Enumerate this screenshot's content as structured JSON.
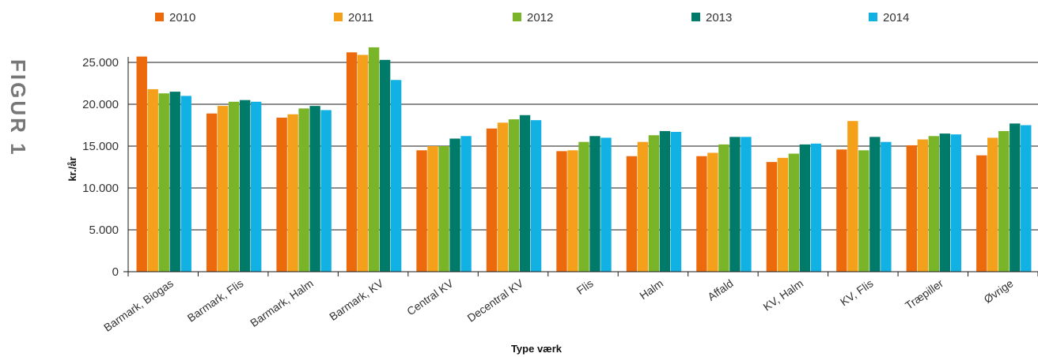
{
  "figure": {
    "label": "FIGUR 1"
  },
  "chart_data": {
    "type": "bar",
    "xlabel": "Type værk",
    "ylabel": "kr./år",
    "ylim": [
      0,
      28000
    ],
    "yticks": [
      0,
      5000,
      10000,
      15000,
      20000,
      25000
    ],
    "ytick_labels": [
      "0",
      "5.000",
      "10.000",
      "15.000",
      "20.000",
      "25.000"
    ],
    "grid": "horizontal",
    "legend_position": "top",
    "categories": [
      "Barmark, Biogas",
      "Barmark, Flis",
      "Barmark, Halm",
      "Barmark, KV",
      "Central KV",
      "Decentral KV",
      "Flis",
      "Halm",
      "Affald",
      "KV, Halm",
      "KV, Flis",
      "Træpiller",
      "Øvrige"
    ],
    "series": [
      {
        "name": "2010",
        "color": "#ec6a0c",
        "values": [
          25700,
          18900,
          18400,
          26200,
          14500,
          17100,
          14400,
          13800,
          13800,
          13100,
          14600,
          15100,
          13900
        ]
      },
      {
        "name": "2011",
        "color": "#f5a01a",
        "values": [
          21800,
          19800,
          18800,
          25900,
          15000,
          17800,
          14500,
          15500,
          14200,
          13600,
          18000,
          15800,
          16000
        ]
      },
      {
        "name": "2012",
        "color": "#7ab428",
        "values": [
          21300,
          20300,
          19500,
          26800,
          15000,
          18200,
          15500,
          16300,
          15200,
          14100,
          14500,
          16200,
          16800
        ]
      },
      {
        "name": "2013",
        "color": "#007b69",
        "values": [
          21500,
          20500,
          19800,
          25300,
          15900,
          18700,
          16200,
          16800,
          16100,
          15200,
          16100,
          16500,
          17700
        ]
      },
      {
        "name": "2014",
        "color": "#12b1e3",
        "values": [
          21000,
          20300,
          19300,
          22900,
          16200,
          18100,
          16000,
          16700,
          16100,
          15300,
          15500,
          16400,
          17500
        ]
      }
    ]
  }
}
